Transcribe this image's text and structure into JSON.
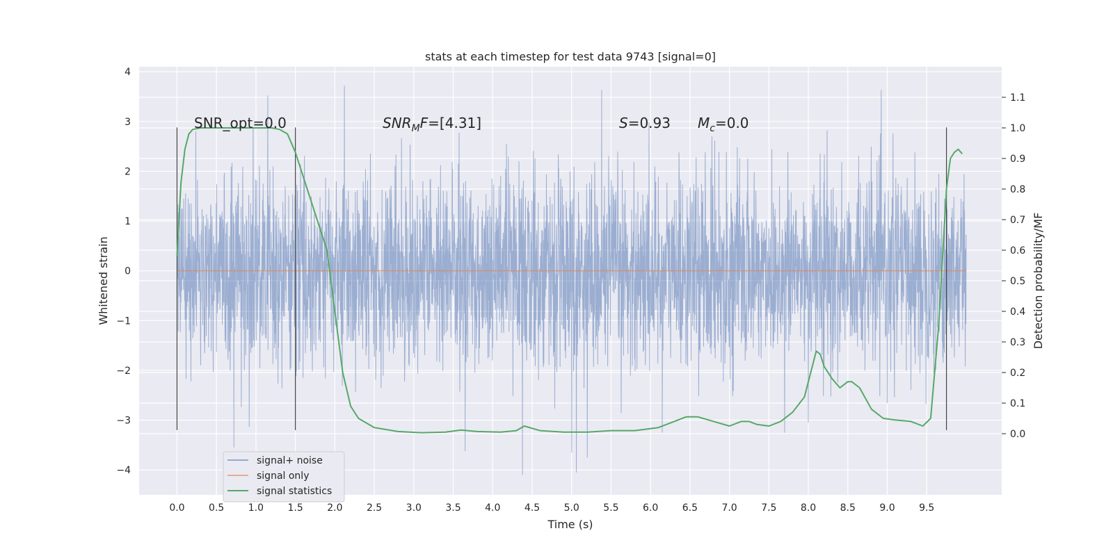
{
  "chart_data": {
    "type": "line",
    "title": "stats at each timestep for test data 9743 [signal=0]",
    "xlabel": "Time (s)",
    "ylabel": "Whitened strain",
    "ylabel_right": "Detection probability/MF",
    "xlim": [
      -0.48,
      10.45
    ],
    "ylim": [
      -4.5,
      4.1
    ],
    "ylim_right": [
      -0.2,
      1.2
    ],
    "x_ticks": [
      0.0,
      0.5,
      1.0,
      1.5,
      2.0,
      2.5,
      3.0,
      3.5,
      4.0,
      4.5,
      5.0,
      5.5,
      6.0,
      6.5,
      7.0,
      7.5,
      8.0,
      8.5,
      9.0,
      9.5
    ],
    "x_tick_labels": [
      "0.0",
      "0.5",
      "1.0",
      "1.5",
      "2.0",
      "2.5",
      "3.0",
      "3.5",
      "4.0",
      "4.5",
      "5.0",
      "5.5",
      "6.0",
      "6.5",
      "7.0",
      "7.5",
      "8.0",
      "8.5",
      "9.0",
      "9.5"
    ],
    "y_ticks": [
      -4,
      -3,
      -2,
      -1,
      0,
      1,
      2,
      3,
      4
    ],
    "y_tick_labels": [
      "−4",
      "−3",
      "−2",
      "−1",
      "0",
      "1",
      "2",
      "3",
      "4"
    ],
    "y_right_ticks": [
      0.0,
      0.1,
      0.2,
      0.3,
      0.4,
      0.5,
      0.6,
      0.7,
      0.8,
      0.9,
      1.0,
      1.1
    ],
    "y_right_tick_labels": [
      "0.0",
      "0.1",
      "0.2",
      "0.3",
      "0.4",
      "0.5",
      "0.6",
      "0.7",
      "0.8",
      "0.9",
      "1.0",
      "1.1"
    ],
    "grid": true,
    "legend_position": "lower-left",
    "annotations": [
      {
        "text": "SNR_opt=0.0",
        "x": 0.2,
        "y": 2.92
      },
      {
        "text": "SNR_MF=[4.31]",
        "x": 2.6,
        "y": 2.92
      },
      {
        "text": "S=0.93",
        "x": 5.6,
        "y": 2.92
      },
      {
        "text": "M_c=0.0",
        "x": 6.6,
        "y": 2.92
      }
    ],
    "vertical_markers": [
      0.0,
      1.5,
      9.75
    ],
    "marker_range": [
      -3.2,
      2.88
    ],
    "series": [
      {
        "name": "signal+ noise",
        "color": "#4c72b0",
        "style": "dense noise trace",
        "x_range": [
          0.0,
          10.0
        ],
        "core_band": [
          -1.3,
          1.3
        ],
        "notable_peaks": [
          [
            1.15,
            3.52
          ],
          [
            2.12,
            3.72
          ],
          [
            5.38,
            3.63
          ],
          [
            5.0,
            -3.65
          ],
          [
            5.06,
            -4.05
          ],
          [
            5.2,
            -3.75
          ],
          [
            3.65,
            -3.62
          ],
          [
            0.72,
            -3.55
          ],
          [
            6.15,
            -3.25
          ],
          [
            8.0,
            -3.05
          ],
          [
            7.7,
            -3.25
          ]
        ]
      },
      {
        "name": "signal only",
        "color": "#dd8452",
        "x": [
          0.0,
          10.0
        ],
        "y": [
          0.0,
          0.0
        ]
      },
      {
        "name": "signal statistics",
        "color": "#55a868",
        "axis": "right",
        "x": [
          0.0,
          0.05,
          0.1,
          0.15,
          0.2,
          0.3,
          0.5,
          0.8,
          1.0,
          1.2,
          1.3,
          1.4,
          1.5,
          1.6,
          1.7,
          1.8,
          1.9,
          2.0,
          2.1,
          2.2,
          2.3,
          2.5,
          2.8,
          3.1,
          3.4,
          3.6,
          3.8,
          4.1,
          4.3,
          4.4,
          4.6,
          4.9,
          5.2,
          5.5,
          5.8,
          6.1,
          6.3,
          6.45,
          6.6,
          6.8,
          7.0,
          7.15,
          7.25,
          7.35,
          7.5,
          7.65,
          7.8,
          7.95,
          8.05,
          8.1,
          8.15,
          8.2,
          8.3,
          8.4,
          8.5,
          8.55,
          8.65,
          8.8,
          8.95,
          9.1,
          9.3,
          9.45,
          9.55,
          9.65,
          9.75,
          9.8,
          9.85,
          9.9,
          9.95
        ],
        "y": [
          0.58,
          0.82,
          0.93,
          0.98,
          0.995,
          1.0,
          1.0,
          1.0,
          1.0,
          1.0,
          0.995,
          0.98,
          0.92,
          0.84,
          0.76,
          0.68,
          0.6,
          0.4,
          0.2,
          0.09,
          0.05,
          0.02,
          0.007,
          0.003,
          0.005,
          0.012,
          0.007,
          0.005,
          0.01,
          0.025,
          0.01,
          0.005,
          0.005,
          0.01,
          0.01,
          0.02,
          0.04,
          0.055,
          0.055,
          0.04,
          0.025,
          0.04,
          0.04,
          0.03,
          0.025,
          0.04,
          0.07,
          0.12,
          0.22,
          0.27,
          0.26,
          0.22,
          0.18,
          0.15,
          0.17,
          0.17,
          0.15,
          0.08,
          0.05,
          0.045,
          0.04,
          0.025,
          0.05,
          0.35,
          0.8,
          0.9,
          0.92,
          0.93,
          0.915
        ]
      }
    ]
  }
}
